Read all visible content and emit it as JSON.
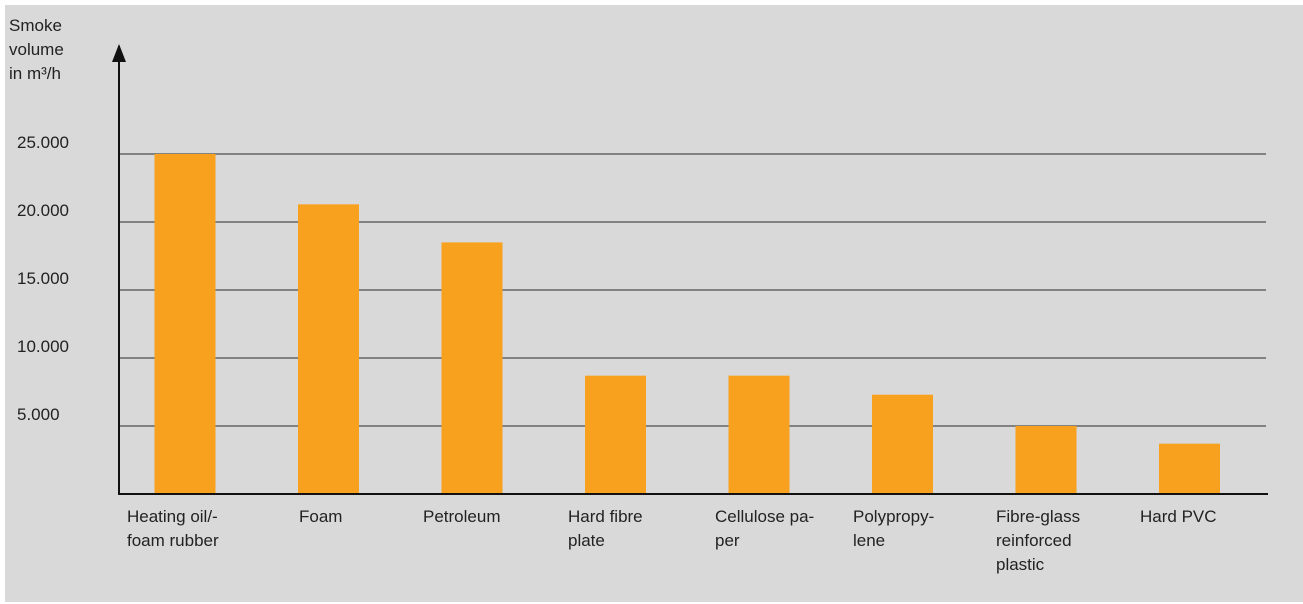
{
  "chart_data": {
    "type": "bar",
    "ylabel_lines": [
      "Smoke",
      "volume",
      "in m³/h"
    ],
    "categories": [
      [
        "Heating oil/-",
        "foam rubber"
      ],
      [
        "Foam"
      ],
      [
        "Petroleum"
      ],
      [
        "Hard fibre",
        "plate"
      ],
      [
        "Cellulose pa-",
        "per"
      ],
      [
        "Polypropy-",
        "lene"
      ],
      [
        "Fibre-glass",
        "reinforced",
        "plastic"
      ],
      [
        "Hard PVC"
      ]
    ],
    "values": [
      25000,
      21300,
      18500,
      8700,
      8700,
      7300,
      5000,
      3700
    ],
    "ylim": [
      0,
      25000
    ],
    "yticks": [
      5000,
      10000,
      15000,
      20000,
      25000
    ],
    "ytick_labels": [
      "5.000",
      "10.000",
      "15.000",
      "20.000",
      "25.000"
    ],
    "bar_color": "#f7a11e",
    "background_color": "#d9d9d9",
    "grid": true
  }
}
